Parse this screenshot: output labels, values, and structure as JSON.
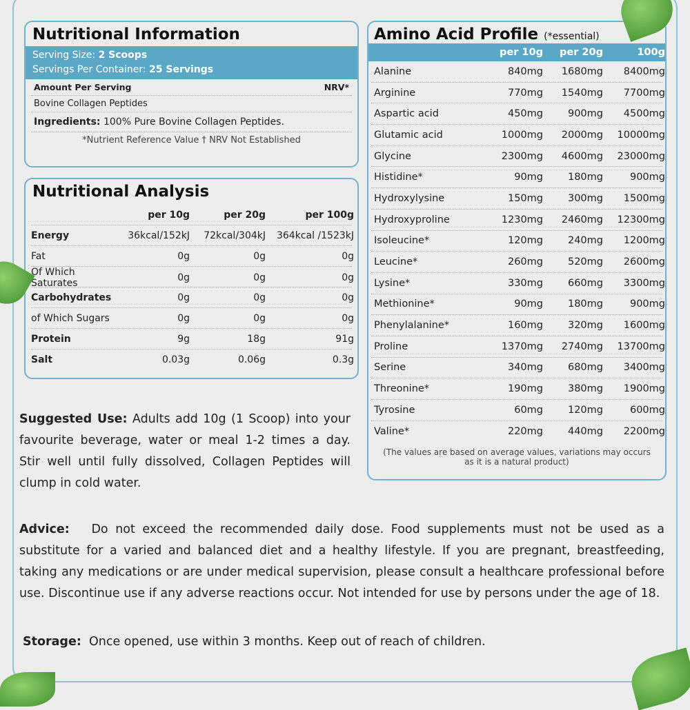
{
  "leaf_color": "#4a9a35",
  "accent": "#5aa8c6",
  "info": {
    "title": "Nutritional Information",
    "serving_label": "Serving Size:",
    "serving_value": "2 Scoops",
    "per_container_label": "Servings Per Container:",
    "per_container_value": "25 Servings",
    "amount_label": "Amount Per Serving",
    "nrv_label": "NRV*",
    "item": "Bovine Collagen Peptides",
    "ingredients_label": "Ingredients:",
    "ingredients_value": "100% Pure Bovine Collagen Peptides.",
    "footnote": "*Nutrient Reference Value † NRV Not Established"
  },
  "analysis": {
    "title": "Nutritional Analysis",
    "headers": [
      "",
      "per 10g",
      "per 20g",
      "per 100g"
    ],
    "rows": [
      [
        "Energy",
        "36kcal/152kJ",
        "72kcal/304kJ",
        "364kcal /1523kJ"
      ],
      [
        "Fat",
        "0g",
        "0g",
        "0g"
      ],
      [
        "Of Which Saturates",
        "0g",
        "0g",
        "0g"
      ],
      [
        "Carbohydrates",
        "0g",
        "0g",
        "0g"
      ],
      [
        "of Which Sugars",
        "0g",
        "0g",
        "0g"
      ],
      [
        "Protein",
        "9g",
        "18g",
        "91g"
      ],
      [
        "Salt",
        "0.03g",
        "0.06g",
        "0.3g"
      ]
    ]
  },
  "amino": {
    "title": "Amino Acid Profile",
    "subtitle": "(*essential)",
    "headers": [
      "",
      "per 10g",
      "per 20g",
      "100g"
    ],
    "rows": [
      [
        "Alanine",
        "840mg",
        "1680mg",
        "8400mg"
      ],
      [
        "Arginine",
        "770mg",
        "1540mg",
        "7700mg"
      ],
      [
        "Aspartic acid",
        "450mg",
        "900mg",
        "4500mg"
      ],
      [
        "Glutamic acid",
        "1000mg",
        "2000mg",
        "10000mg"
      ],
      [
        "Glycine",
        "2300mg",
        "4600mg",
        "23000mg"
      ],
      [
        "Histidine*",
        "90mg",
        "180mg",
        "900mg"
      ],
      [
        "Hydroxylysine",
        "150mg",
        "300mg",
        "1500mg"
      ],
      [
        "Hydroxyproline",
        "1230mg",
        "2460mg",
        "12300mg"
      ],
      [
        "Isoleucine*",
        "120mg",
        "240mg",
        "1200mg"
      ],
      [
        "Leucine*",
        "260mg",
        "520mg",
        "2600mg"
      ],
      [
        "Lysine*",
        "330mg",
        "660mg",
        "3300mg"
      ],
      [
        "Methionine*",
        "90mg",
        "180mg",
        "900mg"
      ],
      [
        "Phenylalanine*",
        "160mg",
        "320mg",
        "1600mg"
      ],
      [
        "Proline",
        "1370mg",
        "2740mg",
        "13700mg"
      ],
      [
        "Serine",
        "340mg",
        "680mg",
        "3400mg"
      ],
      [
        "Threonine*",
        "190mg",
        "380mg",
        "1900mg"
      ],
      [
        "Tyrosine",
        "60mg",
        "120mg",
        "600mg"
      ],
      [
        "Valine*",
        "220mg",
        "440mg",
        "2200mg"
      ]
    ],
    "note": "(The values are based on average values, variations may occurs as it is a natural product)"
  },
  "suggested": {
    "label": "Suggested Use:",
    "text": "Adults add 10g (1 Scoop) into your favourite beverage, water or meal 1-2 times a day. Stir well until fully dissolved, Collagen Peptides will clump in cold water."
  },
  "advice": {
    "label": "Advice:",
    "text": "Do not exceed the recommended daily dose. Food supplements must not be used as a substitute for a varied and balanced diet and a healthy lifestyle. If you are pregnant, breastfeeding, taking any medications or are under medical supervision, please consult a healthcare professional before use. Discontinue use if any adverse reactions occur. Not intended for use by persons under the age of 18."
  },
  "storage": {
    "label": "Storage:",
    "text": "Once opened, use within 3 months. Keep out of reach of children."
  }
}
